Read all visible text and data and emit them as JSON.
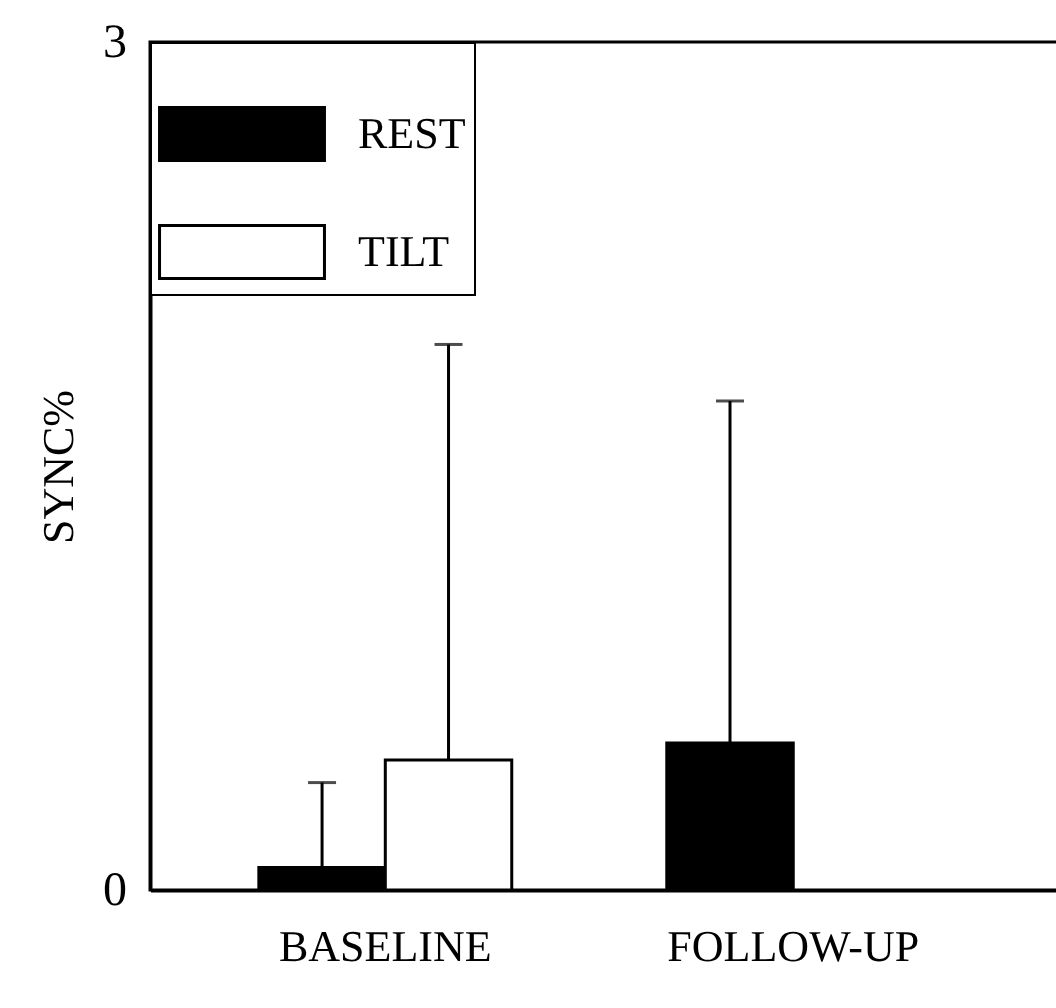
{
  "chart_data": {
    "type": "bar",
    "ylabel": "SYNC%",
    "categories": [
      "BASELINE",
      "FOLLOW-UP"
    ],
    "series": [
      {
        "name": "REST",
        "color": "#000000",
        "values": [
          0.08,
          0.52
        ],
        "errors": [
          [
            0.08,
            0.38
          ],
          [
            0.52,
            1.73
          ]
        ]
      },
      {
        "name": "TILT",
        "color": "#ffffff",
        "values": [
          0.46,
          null
        ],
        "errors": [
          [
            0.46,
            1.93
          ],
          null
        ]
      }
    ],
    "ylim": [
      0,
      3
    ],
    "yticks": [
      0,
      3
    ],
    "grid": false,
    "legend": "top left"
  }
}
